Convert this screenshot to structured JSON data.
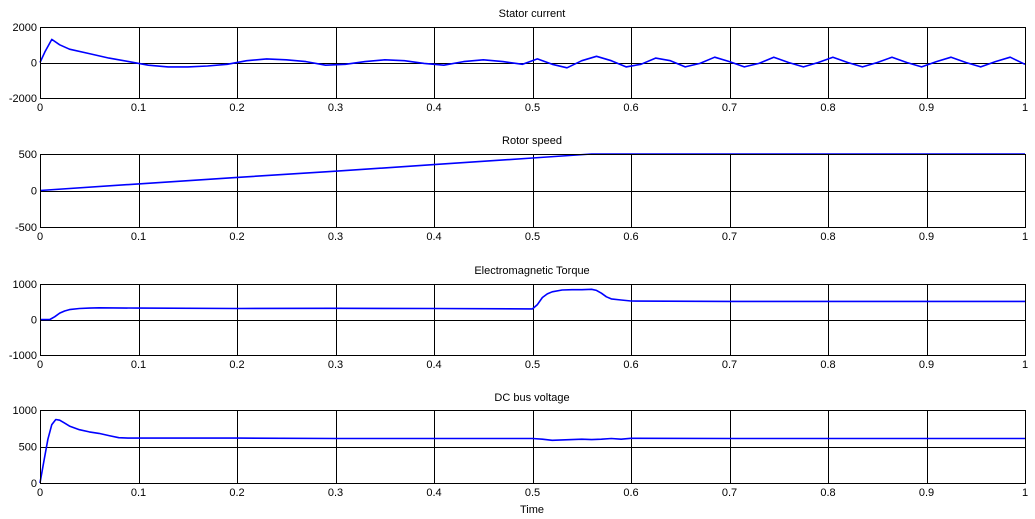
{
  "colors": {
    "background": "#ffffff",
    "axes": "#000000",
    "series": "#0000ff"
  },
  "chart_data": [
    {
      "type": "line",
      "title": "Stator current",
      "xlabel": "",
      "ylabel": "",
      "xlim": [
        0,
        1
      ],
      "ylim": [
        -2000,
        2000
      ],
      "x_ticks": [
        "0",
        "0.1",
        "0.2",
        "0.3",
        "0.4",
        "0.5",
        "0.6",
        "0.7",
        "0.8",
        "0.9",
        "1"
      ],
      "y_ticks": [
        "-2000",
        "0",
        "2000"
      ],
      "grid": true,
      "series": [
        {
          "x": [
            0,
            0.005,
            0.012,
            0.02,
            0.03,
            0.05,
            0.07,
            0.09,
            0.11,
            0.13,
            0.15,
            0.17,
            0.19,
            0.21,
            0.23,
            0.25,
            0.27,
            0.29,
            0.31,
            0.33,
            0.35,
            0.37,
            0.39,
            0.41,
            0.43,
            0.45,
            0.47,
            0.49,
            0.505,
            0.52,
            0.535,
            0.55,
            0.565,
            0.58,
            0.595,
            0.61,
            0.625,
            0.64,
            0.655,
            0.67,
            0.685,
            0.7,
            0.715,
            0.73,
            0.745,
            0.76,
            0.775,
            0.79,
            0.805,
            0.82,
            0.835,
            0.85,
            0.865,
            0.88,
            0.895,
            0.91,
            0.925,
            0.94,
            0.955,
            0.97,
            0.985,
            1
          ],
          "values": [
            0,
            600,
            1300,
            1000,
            750,
            500,
            250,
            50,
            -150,
            -250,
            -250,
            -200,
            -100,
            100,
            200,
            150,
            50,
            -150,
            -100,
            50,
            150,
            100,
            -50,
            -150,
            50,
            150,
            50,
            -100,
            200,
            -100,
            -300,
            100,
            350,
            100,
            -250,
            -100,
            250,
            100,
            -250,
            -50,
            300,
            50,
            -250,
            -50,
            300,
            0,
            -250,
            0,
            300,
            0,
            -250,
            0,
            300,
            0,
            -250,
            50,
            300,
            0,
            -250,
            50,
            300,
            -100
          ]
        }
      ]
    },
    {
      "type": "line",
      "title": "Rotor speed",
      "xlabel": "",
      "ylabel": "",
      "xlim": [
        0,
        1
      ],
      "ylim": [
        -500,
        500
      ],
      "x_ticks": [
        "0",
        "0.1",
        "0.2",
        "0.3",
        "0.4",
        "0.5",
        "0.6",
        "0.7",
        "0.8",
        "0.9",
        "1"
      ],
      "y_ticks": [
        "-500",
        "0",
        "500"
      ],
      "grid": true,
      "series": [
        {
          "x": [
            0,
            0.1,
            0.2,
            0.3,
            0.4,
            0.5,
            0.56,
            0.6,
            0.7,
            0.8,
            0.9,
            1
          ],
          "values": [
            0,
            90,
            180,
            265,
            355,
            445,
            500,
            500,
            500,
            500,
            500,
            500
          ]
        }
      ]
    },
    {
      "type": "line",
      "title": "Electromagnetic Torque",
      "xlabel": "",
      "ylabel": "",
      "xlim": [
        0,
        1
      ],
      "ylim": [
        -1000,
        1000
      ],
      "x_ticks": [
        "0",
        "0.1",
        "0.2",
        "0.3",
        "0.4",
        "0.5",
        "0.6",
        "0.7",
        "0.8",
        "0.9",
        "1"
      ],
      "y_ticks": [
        "-1000",
        "0",
        "1000"
      ],
      "grid": true,
      "series": [
        {
          "x": [
            0,
            0.01,
            0.015,
            0.02,
            0.025,
            0.03,
            0.04,
            0.05,
            0.06,
            0.1,
            0.2,
            0.3,
            0.4,
            0.5,
            0.505,
            0.51,
            0.515,
            0.52,
            0.53,
            0.54,
            0.55,
            0.56,
            0.565,
            0.57,
            0.575,
            0.58,
            0.59,
            0.6,
            0.7,
            0.8,
            0.9,
            1
          ],
          "values": [
            0,
            0,
            80,
            180,
            240,
            280,
            310,
            320,
            330,
            320,
            310,
            315,
            310,
            300,
            420,
            620,
            720,
            780,
            830,
            840,
            840,
            850,
            820,
            740,
            640,
            580,
            550,
            520,
            510,
            510,
            510,
            510
          ]
        }
      ]
    },
    {
      "type": "line",
      "title": "DC bus voltage",
      "xlabel": "Time",
      "ylabel": "",
      "xlim": [
        0,
        1
      ],
      "ylim": [
        0,
        1000
      ],
      "x_ticks": [
        "0",
        "0.1",
        "0.2",
        "0.3",
        "0.4",
        "0.5",
        "0.6",
        "0.7",
        "0.8",
        "0.9",
        "1"
      ],
      "y_ticks": [
        "0",
        "500",
        "1000"
      ],
      "grid": true,
      "series": [
        {
          "x": [
            0,
            0.004,
            0.008,
            0.012,
            0.016,
            0.02,
            0.025,
            0.03,
            0.04,
            0.05,
            0.06,
            0.07,
            0.08,
            0.09,
            0.1,
            0.2,
            0.3,
            0.4,
            0.5,
            0.51,
            0.52,
            0.53,
            0.55,
            0.56,
            0.57,
            0.58,
            0.59,
            0.6,
            0.7,
            0.8,
            0.9,
            1
          ],
          "values": [
            0,
            300,
            600,
            800,
            870,
            860,
            820,
            780,
            730,
            700,
            680,
            650,
            620,
            615,
            615,
            615,
            610,
            610,
            610,
            600,
            585,
            590,
            600,
            595,
            600,
            610,
            600,
            612,
            610,
            610,
            610,
            610
          ]
        }
      ]
    }
  ]
}
